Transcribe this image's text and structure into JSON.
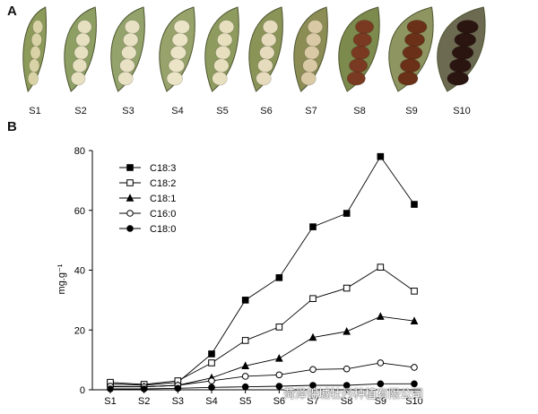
{
  "panels": {
    "a": "A",
    "b": "B"
  },
  "pods": [
    "S1",
    "S2",
    "S3",
    "S4",
    "S5",
    "S6",
    "S7",
    "S8",
    "S9",
    "S10"
  ],
  "pod_colors": {
    "S1": {
      "seed": "#d9d2a6",
      "pod": "#8c9a5a"
    },
    "S2": {
      "seed": "#e6dfc0",
      "pod": "#8d9f63"
    },
    "S3": {
      "seed": "#e9e1c4",
      "pod": "#93a36b"
    },
    "S4": {
      "seed": "#ece4c6",
      "pod": "#97a36b"
    },
    "S5": {
      "seed": "#e8dfbf",
      "pod": "#8d9b5e"
    },
    "S6": {
      "seed": "#e6dcbd",
      "pod": "#8a9457"
    },
    "S7": {
      "seed": "#d9c9a4",
      "pod": "#8b8d54"
    },
    "S8": {
      "seed": "#7a3a22",
      "pod": "#7d8a4d"
    },
    "S9": {
      "seed": "#6a3018",
      "pod": "#8e9560"
    },
    "S10": {
      "seed": "#2a1510",
      "pod": "#6d6a52"
    }
  },
  "watermark": "菏泽锦城牡丹种植有限公司",
  "chart_data": {
    "type": "line",
    "ylabel": "mg.g⁻¹",
    "xlabel": "",
    "title": "",
    "categories": [
      "S1",
      "S2",
      "S3",
      "S4",
      "S5",
      "S6",
      "S7",
      "S8",
      "S9",
      "S10"
    ],
    "ylim": [
      0,
      80
    ],
    "yticks": [
      0,
      20,
      40,
      60,
      80
    ],
    "grid": false,
    "legend_position": "top-left",
    "series": [
      {
        "name": "C18:3",
        "marker": "square-filled",
        "values": [
          2,
          1.5,
          2.5,
          12,
          30,
          37.5,
          54.5,
          59,
          78,
          62
        ]
      },
      {
        "name": "C18:2",
        "marker": "square-open",
        "values": [
          2.5,
          1.8,
          3,
          9,
          16.5,
          21,
          30.5,
          34,
          41,
          33
        ]
      },
      {
        "name": "C18:1",
        "marker": "triangle-filled",
        "values": [
          1,
          1,
          1.5,
          4,
          8,
          10.5,
          17.5,
          19.5,
          24.5,
          23
        ]
      },
      {
        "name": "C16:0",
        "marker": "circle-open",
        "values": [
          1.2,
          1,
          1.5,
          3,
          4.5,
          5,
          6.8,
          7,
          9,
          7.5
        ]
      },
      {
        "name": "C18:0",
        "marker": "circle-filled",
        "values": [
          0.3,
          0.3,
          0.5,
          0.8,
          1,
          1.2,
          1.5,
          1.5,
          2,
          2
        ]
      }
    ]
  }
}
